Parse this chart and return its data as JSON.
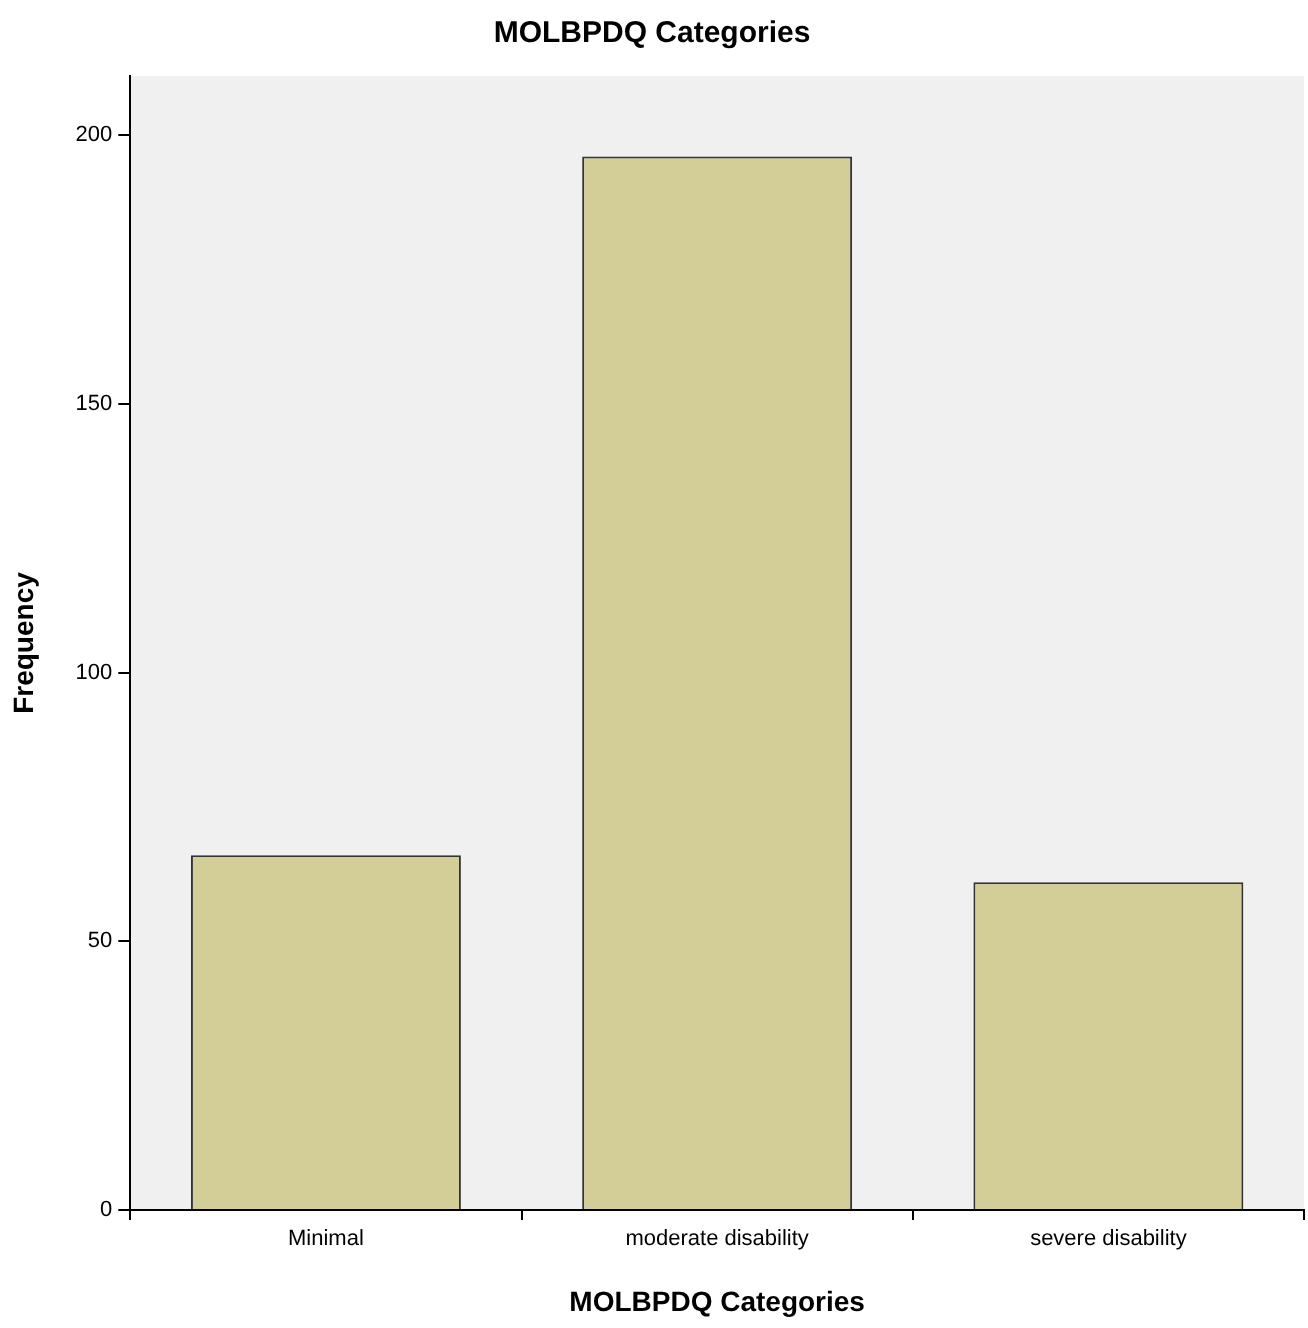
{
  "chart_data": {
    "type": "bar",
    "title": "MOLBPDQ Categories",
    "xlabel": "MOLBPDQ Categories",
    "ylabel": "Frequency",
    "categories": [
      "Minimal",
      "moderate disability",
      "severe disability"
    ],
    "values": [
      66,
      196,
      61
    ],
    "color": "#d3ce97",
    "ylim": [
      0,
      211
    ],
    "yticks": [
      0,
      50,
      100,
      150,
      200
    ],
    "grid": false
  }
}
